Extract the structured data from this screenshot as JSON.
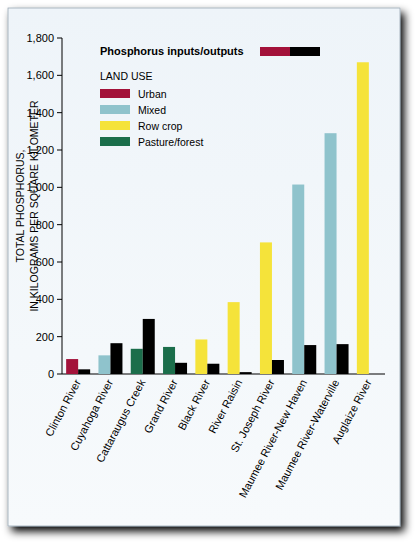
{
  "chart_data": {
    "type": "bar",
    "ylabel": [
      "TOTAL PHOSPHORUS,",
      "IN KILOGRAMS PER SQUARE KILOMETER"
    ],
    "legend_title": "Phosphorus inputs/outputs",
    "categories": [
      "Clinton River",
      "Cuyahoga River",
      "Cattaraugus Creek",
      "Grand River",
      "Black River",
      "River Raisin",
      "St. Joseph River",
      "Maumee River-New Haven",
      "Maumee River-Waterville",
      "Auglaize River"
    ],
    "series": [
      {
        "color": "#a3123a",
        "colors": [
          "#a3123a",
          "#8fc3cc",
          "#1b6e4b",
          "#1b6e4b",
          "#f5e33a",
          "#f5e33a",
          "#f5e33a",
          "#8fc3cc",
          "#8fc3cc",
          "#f5e33a"
        ],
        "values": [
          80,
          100,
          135,
          145,
          185,
          385,
          705,
          1015,
          1290,
          1670
        ]
      },
      {
        "color": "#000000",
        "values": [
          25,
          165,
          295,
          60,
          55,
          10,
          75,
          155,
          160,
          null
        ]
      }
    ],
    "land_use": {
      "title": "LAND USE",
      "items": [
        {
          "name": "Urban",
          "color": "#a3123a"
        },
        {
          "name": "Mixed",
          "color": "#8fc3cc"
        },
        {
          "name": "Row crop",
          "color": "#f5e33a"
        },
        {
          "name": "Pasture/forest",
          "color": "#1b6e4b"
        }
      ]
    },
    "ylim": [
      0,
      1800
    ],
    "yticks": [
      0,
      200,
      400,
      600,
      800,
      {
        "value": 1000,
        "label": "1,000"
      },
      {
        "value": 1200,
        "label": "1,200"
      },
      {
        "value": 1400,
        "label": "1,400"
      },
      {
        "value": 1600,
        "label": "1,600"
      },
      {
        "value": 1800,
        "label": "1,800"
      }
    ],
    "grid": false,
    "legend": "top"
  }
}
